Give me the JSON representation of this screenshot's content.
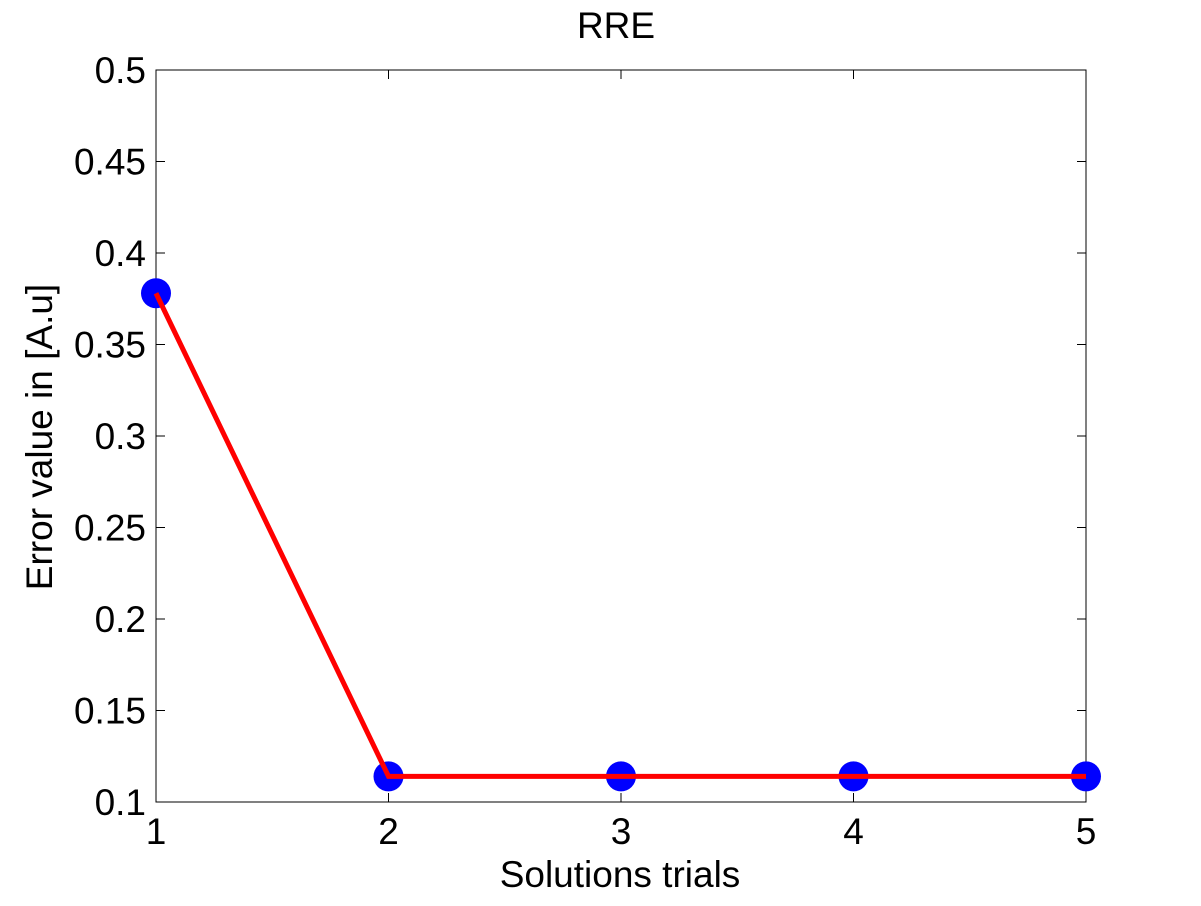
{
  "chart_data": {
    "type": "line",
    "title": "RRE",
    "xlabel": "Solutions trials",
    "ylabel": "Error value in [A.u]",
    "xlim": [
      1,
      5
    ],
    "ylim": [
      0.1,
      0.5
    ],
    "grid": false,
    "x_ticks": [
      "1",
      "2",
      "3",
      "4",
      "5"
    ],
    "y_ticks": [
      "0.1",
      "0.15",
      "0.2",
      "0.25",
      "0.3",
      "0.35",
      "0.4",
      "0.45",
      "0.5"
    ],
    "x_tick_values": [
      1,
      2,
      3,
      4,
      5
    ],
    "y_tick_values": [
      0.1,
      0.15,
      0.2,
      0.25,
      0.3,
      0.35,
      0.4,
      0.45,
      0.5
    ],
    "series": [
      {
        "x": [
          1,
          2,
          3,
          4,
          5
        ],
        "values": [
          0.378,
          0.114,
          0.114,
          0.114,
          0.114
        ],
        "line_color": "#ff0000",
        "marker_color": "#0000ff"
      }
    ]
  }
}
